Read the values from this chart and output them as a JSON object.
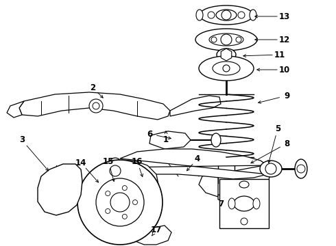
{
  "bg_color": "#ffffff",
  "fig_width": 4.9,
  "fig_height": 3.6,
  "dpi": 100,
  "labels": {
    "13": [
      4.22,
      3.42,
      3.58,
      3.4
    ],
    "12": [
      4.22,
      3.22,
      3.58,
      3.2
    ],
    "11": [
      4.1,
      3.08,
      3.5,
      3.06
    ],
    "10": [
      4.18,
      2.96,
      3.58,
      2.94
    ],
    "9": [
      4.22,
      2.58,
      3.72,
      2.55
    ],
    "8": [
      4.22,
      2.12,
      3.72,
      2.08
    ],
    "6": [
      2.2,
      1.98,
      2.55,
      1.9
    ],
    "1": [
      2.45,
      2.22,
      2.45,
      2.08
    ],
    "2": [
      1.35,
      2.38,
      1.62,
      2.2
    ],
    "3": [
      0.32,
      2.08,
      0.75,
      1.9
    ],
    "14": [
      1.25,
      1.7,
      1.42,
      1.58
    ],
    "15": [
      1.6,
      1.7,
      1.72,
      1.52
    ],
    "16": [
      2.0,
      1.7,
      2.1,
      1.58
    ],
    "17": [
      2.3,
      0.95,
      2.18,
      1.05
    ],
    "4": [
      2.88,
      1.68,
      2.8,
      1.78
    ],
    "5": [
      4.05,
      1.78,
      3.88,
      1.82
    ],
    "7": [
      3.38,
      1.35,
      3.55,
      1.48
    ]
  }
}
